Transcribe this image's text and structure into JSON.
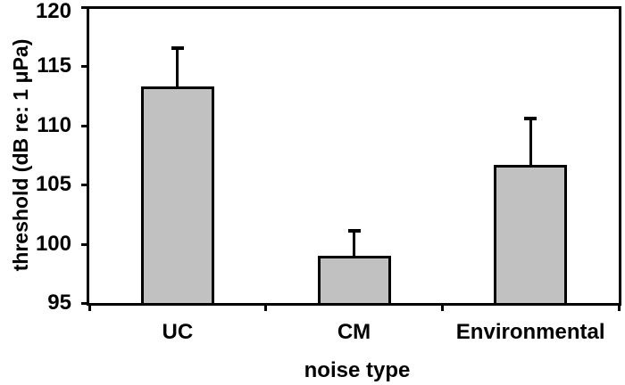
{
  "chart_data": {
    "type": "bar",
    "title": "",
    "xlabel": "noise type",
    "ylabel": "threshold (dB re: 1 μPa)",
    "categories": [
      "UC",
      "CM",
      "Environmental"
    ],
    "values": [
      113.3,
      99.0,
      106.7
    ],
    "errors_upper": [
      3.2,
      2.1,
      3.9
    ],
    "ylim": [
      95,
      120
    ],
    "yticks": [
      95,
      100,
      105,
      110,
      115,
      120
    ],
    "ytick_step": 5,
    "grid": false,
    "legend": "none",
    "error_bars": "upper-only",
    "bar_fill": "#c1c1c1",
    "bar_stroke": "#000000",
    "axis_color": "#000000",
    "background": "#ffffff"
  }
}
